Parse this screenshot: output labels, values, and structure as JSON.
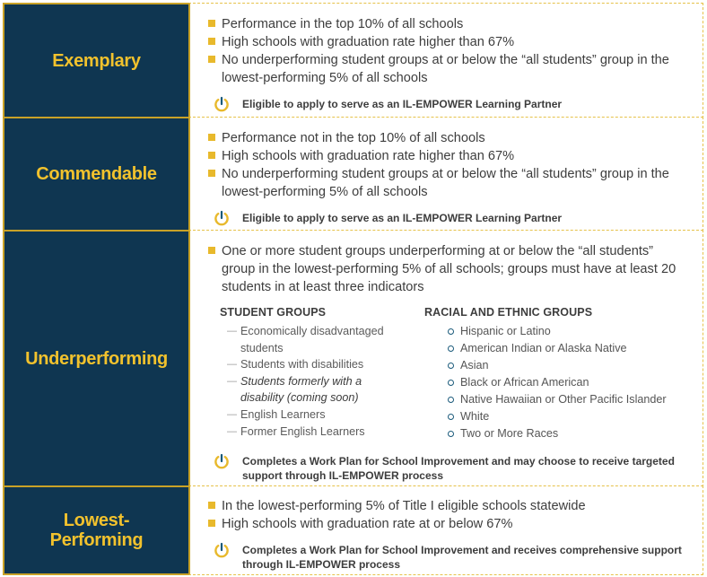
{
  "rows": [
    {
      "label": "Exemplary",
      "bullets": [
        "Performance in the top 10% of all schools",
        "High schools with graduation rate higher than 67%",
        "No underperforming student groups at or below the “all students” group in the lowest-performing 5% of all schools"
      ],
      "note": "Eligible to apply to serve as an IL-EMPOWER Learning Partner"
    },
    {
      "label": "Commendable",
      "bullets": [
        "Performance not in the top 10% of all schools",
        "High schools with graduation rate higher than 67%",
        "No underperforming student groups at or below the “all students” group in the lowest-performing 5% of all schools"
      ],
      "note": "Eligible to apply to serve as an IL-EMPOWER Learning Partner"
    },
    {
      "label": "Underperforming",
      "bullets": [
        "One or more student groups underperforming at or below the “all students” group in the lowest-performing 5% of all schools; groups must have at least 20 students in at least three indicators"
      ],
      "student_groups": {
        "heading": "STUDENT GROUPS",
        "items": [
          "Economically disadvantaged students",
          "Students with disabilities",
          "Students formerly with a disability (coming soon)",
          "English Learners",
          "Former English Learners"
        ]
      },
      "racial_groups": {
        "heading": "RACIAL AND ETHNIC GROUPS",
        "items": [
          "Hispanic or Latino",
          "American Indian or Alaska Native",
          "Asian",
          "Black or African American",
          "Native Hawaiian or Other Pacific Islander",
          "White",
          "Two or More Races"
        ]
      },
      "note": "Completes a Work Plan for School Improvement and may choose to receive targeted support through IL-EMPOWER process"
    },
    {
      "label": "Lowest-Performing",
      "bullets": [
        "In the lowest-performing 5% of Title I eligible schools statewide",
        "High schools with graduation rate at or below 67%"
      ],
      "note": "Completes a Work Plan for School Improvement and receives comprehensive support through IL-EMPOWER process"
    }
  ],
  "colors": {
    "label_bg": "#0f3651",
    "label_text": "#f2c22d",
    "bullet": "#e8b92c",
    "border": "#c9a227",
    "note_icon": "#e8b92c",
    "circle_bullet": "#1a5a7a"
  },
  "icons": {
    "note": "power-icon"
  }
}
